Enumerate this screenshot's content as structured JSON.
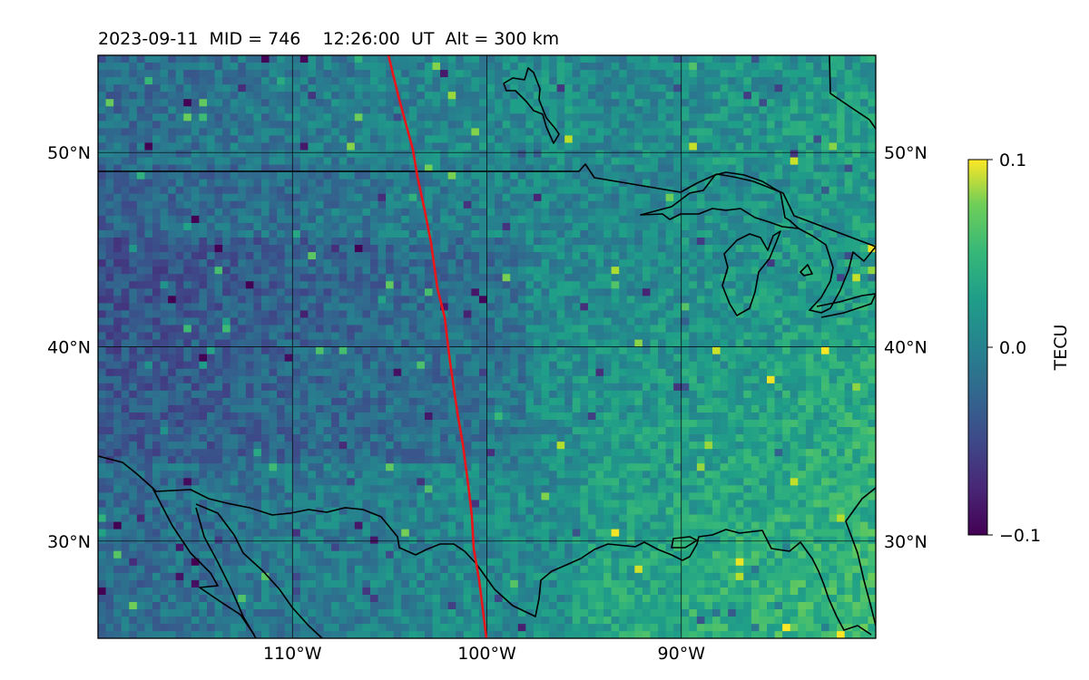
{
  "title": "2023-09-11  MID = 746    12:26:00  UT  Alt = 300 km",
  "map": {
    "lon_range": [
      -120,
      -80
    ],
    "lat_range": [
      25,
      55
    ],
    "lon_ticks": [
      {
        "value": -110,
        "label": "110°W"
      },
      {
        "value": -100,
        "label": "100°W"
      },
      {
        "value": -90,
        "label": "90°W"
      }
    ],
    "lat_ticks": [
      {
        "value": 50,
        "label": "50°N"
      },
      {
        "value": 40,
        "label": "40°N"
      },
      {
        "value": 30,
        "label": "30°N"
      }
    ],
    "grid": true,
    "track_color": "#e8161a",
    "coastline_color": "#000000"
  },
  "colorbar": {
    "label": "TECU",
    "min": -0.1,
    "max": 0.1,
    "ticks": [
      {
        "value": 0.1,
        "label": "0.1"
      },
      {
        "value": 0.0,
        "label": "0.0"
      },
      {
        "value": -0.1,
        "label": "−0.1"
      }
    ],
    "colormap": "viridis"
  }
}
